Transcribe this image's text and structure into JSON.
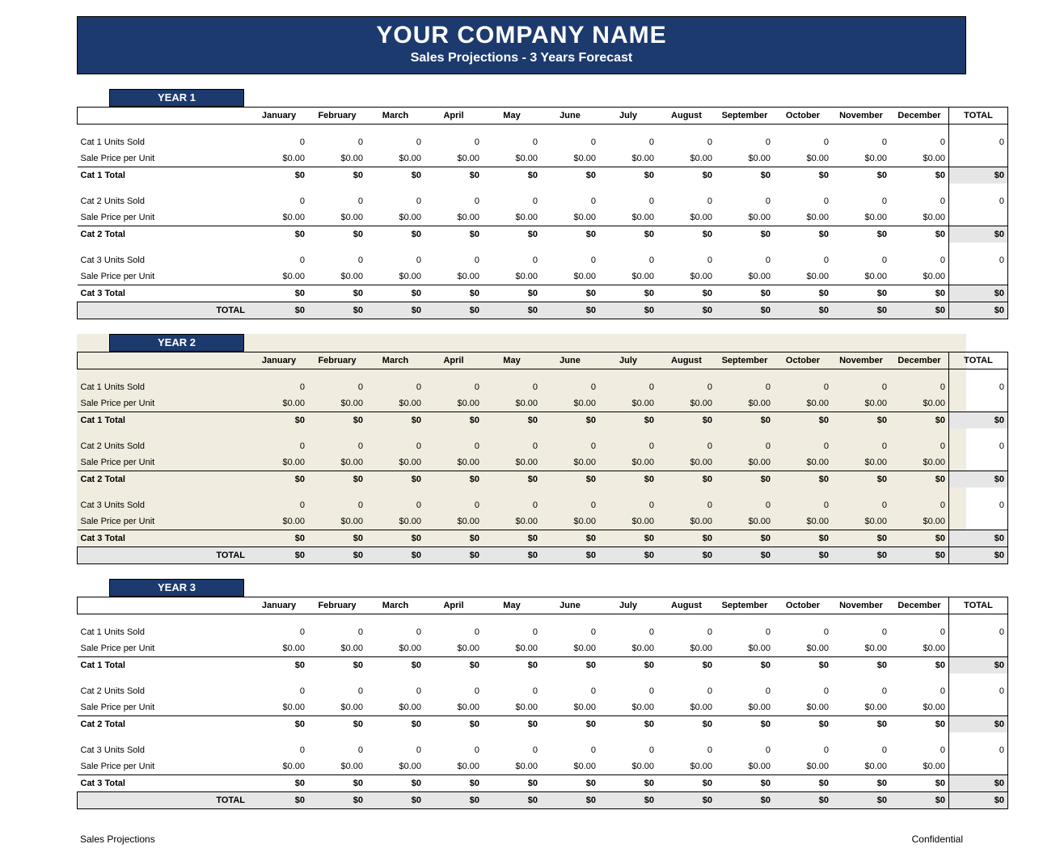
{
  "header": {
    "company": "YOUR COMPANY NAME",
    "subtitle": "Sales Projections - 3 Years Forecast"
  },
  "columns": {
    "months": [
      "January",
      "February",
      "March",
      "April",
      "May",
      "June",
      "July",
      "August",
      "September",
      "October",
      "November",
      "December"
    ],
    "total": "TOTAL"
  },
  "rows": {
    "units": "Cat {n} Units Sold",
    "price": "Sale Price per Unit",
    "catTotal": "Cat {n} Total",
    "yearTotal": "TOTAL"
  },
  "values": {
    "units": "0",
    "price": "$0.00",
    "catTotal": "$0",
    "yearTotal": "$0",
    "unitsRowTotal": "0",
    "priceRowTotal": ""
  },
  "years": [
    {
      "label": "YEAR 1",
      "categories": 3,
      "tint": false
    },
    {
      "label": "YEAR 2",
      "categories": 3,
      "tint": true
    },
    {
      "label": "YEAR 3",
      "categories": 3,
      "tint": false
    }
  ],
  "footer": {
    "left": "Sales Projections",
    "right": "Confidential"
  },
  "style": {
    "banner_bg": "#1c3a6e",
    "banner_fg": "#ffffff",
    "tint_bg": "#f0ece0",
    "total_shade": "#e6e6e6",
    "border": "#000000",
    "font": "Arial"
  }
}
